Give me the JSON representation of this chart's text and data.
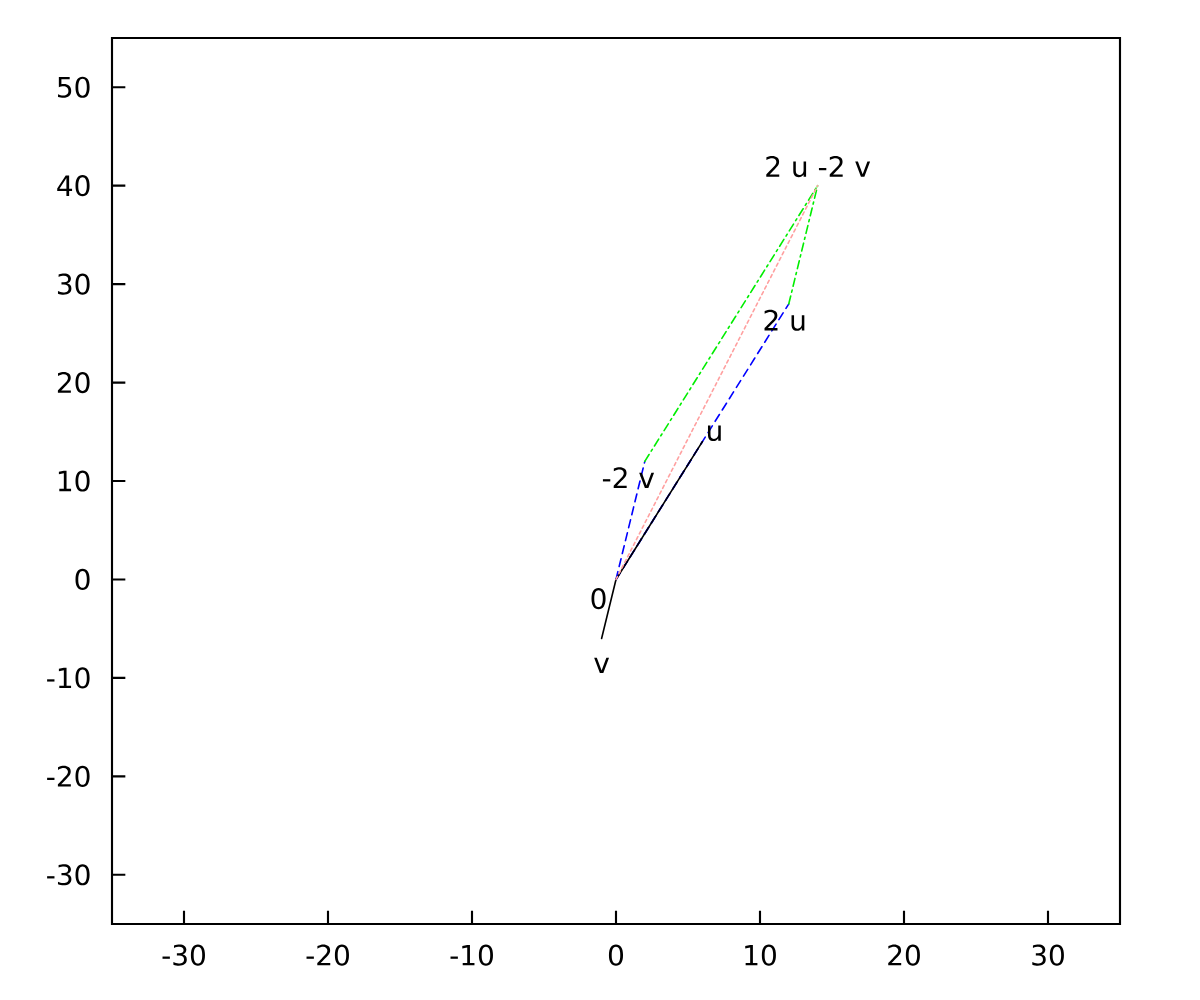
{
  "chart_data": {
    "type": "line",
    "series": [
      {
        "x": [
          0,
          6
        ],
        "values": [
          0,
          14
        ],
        "color": "#0000ff",
        "line_style": "dashed"
      },
      {
        "x": [
          0,
          12
        ],
        "values": [
          0,
          28
        ],
        "color": "#0000ff",
        "line_style": "dashed"
      },
      {
        "x": [
          0,
          2
        ],
        "values": [
          0,
          12
        ],
        "color": "#0000ff",
        "line_style": "dashed"
      },
      {
        "x": [
          2,
          14
        ],
        "values": [
          12,
          40
        ],
        "color": "#00ee00",
        "line_style": "dashdot"
      },
      {
        "x": [
          12,
          14
        ],
        "values": [
          28,
          40
        ],
        "color": "#00ee00",
        "line_style": "dashdot"
      },
      {
        "x": [
          6,
          0,
          -1
        ],
        "values": [
          14,
          0,
          -6
        ],
        "color": "#000000",
        "line_style": "solid"
      },
      {
        "x": [
          0,
          14
        ],
        "values": [
          0,
          40
        ],
        "color": "#ffa0a0",
        "line_style": "dotted"
      }
    ],
    "annotations": [
      {
        "text": "0",
        "x": 0,
        "y": 0
      },
      {
        "text": "u",
        "x": 6,
        "y": 14
      },
      {
        "text": "v",
        "x": -1,
        "y": -6
      },
      {
        "text": "-2 v",
        "x": 2,
        "y": 12
      },
      {
        "text": "2 u",
        "x": 12,
        "y": 28
      },
      {
        "text": "2 u -2 v",
        "x": 14,
        "y": 40
      }
    ],
    "xlim": [
      -35,
      35
    ],
    "ylim": [
      -35,
      55
    ],
    "xticks": [
      -30,
      -20,
      -10,
      0,
      10,
      20,
      30
    ],
    "yticks": [
      -30,
      -20,
      -10,
      0,
      10,
      20,
      30,
      40,
      50
    ],
    "grid": false,
    "marker": "none"
  }
}
